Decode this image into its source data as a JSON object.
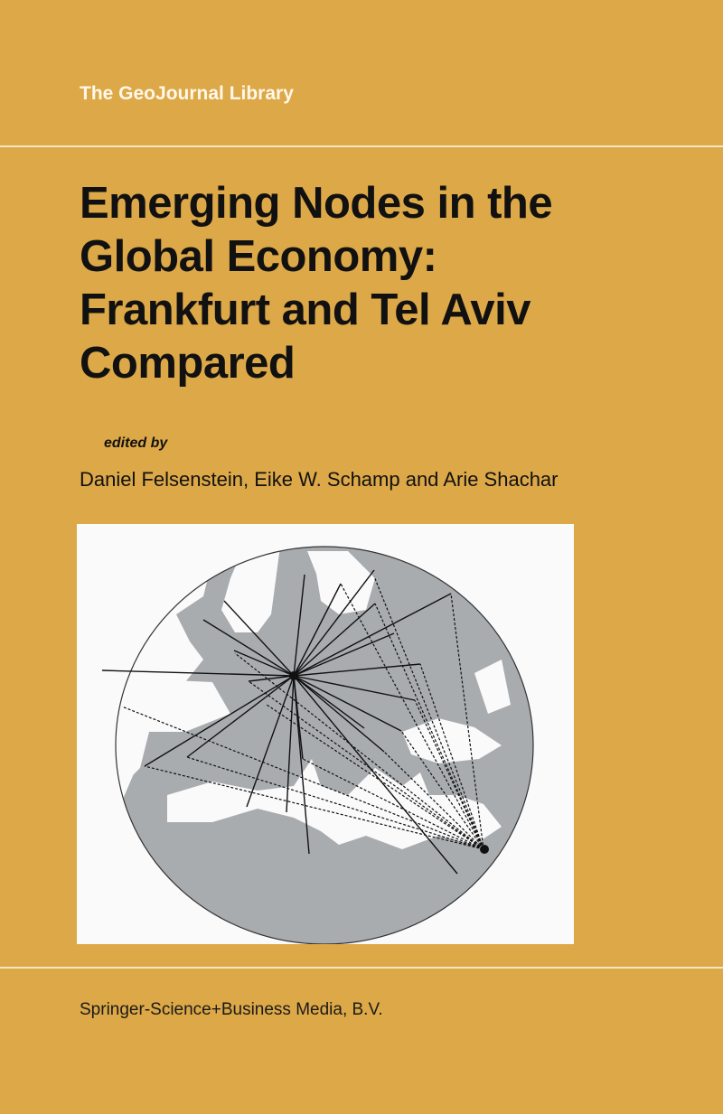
{
  "series": "The GeoJournal Library",
  "title_lines": [
    "Emerging Nodes in the",
    "Global Economy:",
    "Frankfurt and Tel Aviv",
    "Compared"
  ],
  "edited_by": "edited by",
  "authors": "Daniel Felsenstein, Eike W. Schamp  and Arie Shachar",
  "publisher": "Springer-Science+Business Media, B.V.",
  "colors": {
    "background": "#DDA847",
    "rule": "#f6e6c2",
    "land": "#a9acaf",
    "sea": "#fafafa"
  },
  "illustration": "map-of-europe-with-connection-lines"
}
